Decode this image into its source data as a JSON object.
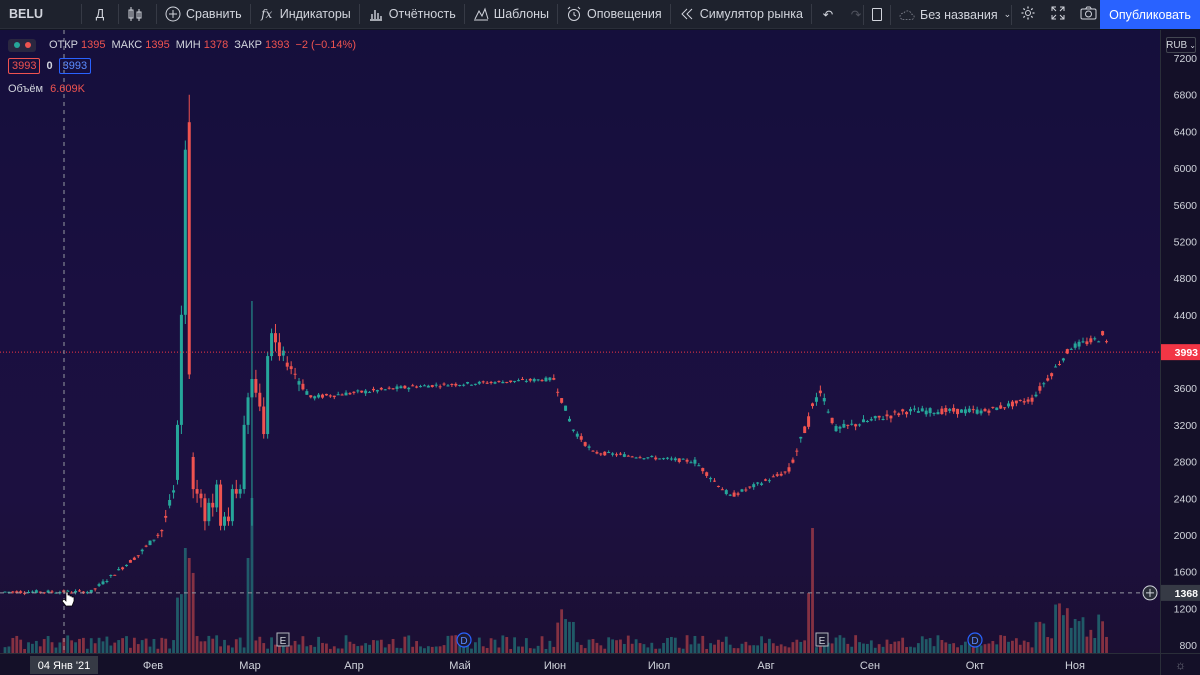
{
  "toolbar": {
    "symbol": "BELU",
    "interval": "Д",
    "compare": "Сравнить",
    "indicators": "Индикаторы",
    "financials": "Отчётность",
    "templates": "Шаблоны",
    "alerts": "Оповещения",
    "replay": "Симулятор рынка",
    "layout_name": "Без названия",
    "publish": "Опубликовать"
  },
  "legend": {
    "open_label": "ОТКР",
    "open": "1395",
    "high_label": "МАКС",
    "high": "1395",
    "low_label": "МИН",
    "low": "1378",
    "close_label": "ЗАКР",
    "close": "1393",
    "change": "−2 (−0.14%)",
    "bid": "3993",
    "spread": "0",
    "ask": "3993",
    "volume_label": "Объём",
    "volume": "6.609K"
  },
  "currency": "RUB",
  "price_ticks": [
    "7200",
    "6800",
    "6400",
    "6000",
    "5600",
    "5200",
    "4800",
    "4400",
    "3600",
    "3200",
    "2800",
    "2400",
    "2000",
    "1600",
    "1200",
    "800"
  ],
  "last_price_label": "3993",
  "crosshair_price_label": "1368",
  "time_ticks": [
    "Фев",
    "Мар",
    "Апр",
    "Май",
    "Июн",
    "Июл",
    "Авг",
    "Сен",
    "Окт",
    "Ноя"
  ],
  "crosshair_time_label": "04 Янв '21",
  "events": [
    "E",
    "D",
    "E",
    "D"
  ],
  "colors": {
    "up": "#26a69a",
    "down": "#ef5350",
    "last_price": "#f23645",
    "accent": "#2962ff"
  },
  "chart_data": {
    "type": "candlestick",
    "symbol": "BELU",
    "currency": "RUB",
    "ylim": [
      700,
      7400
    ],
    "period": "Jan 2021 – Nov 2021",
    "segments": [
      {
        "from": 0,
        "to": 22,
        "start": 1380,
        "end": 1380,
        "volatility": 35
      },
      {
        "from": 22,
        "to": 34,
        "start": 1380,
        "end": 1780,
        "volatility": 45
      },
      {
        "from": 34,
        "to": 40,
        "start": 1780,
        "end": 2050,
        "volatility": 60
      },
      {
        "from": 40,
        "to": 44,
        "start": 2050,
        "end": 2600,
        "volatility": 120
      }
    ],
    "explicit_candles": [
      {
        "i": 44,
        "o": 2600,
        "h": 3250,
        "l": 2550,
        "c": 3200
      },
      {
        "i": 45,
        "o": 3200,
        "h": 4500,
        "l": 3100,
        "c": 4400
      },
      {
        "i": 46,
        "o": 4400,
        "h": 6300,
        "l": 4300,
        "c": 6200
      },
      {
        "i": 47,
        "o": 6500,
        "h": 6800,
        "l": 3700,
        "c": 3750
      },
      {
        "i": 48,
        "o": 2850,
        "h": 2900,
        "l": 2400,
        "c": 2500
      },
      {
        "i": 49,
        "o": 2500,
        "h": 2600,
        "l": 2350,
        "c": 2450
      },
      {
        "i": 50,
        "o": 2450,
        "h": 2500,
        "l": 2300,
        "c": 2400
      },
      {
        "i": 51,
        "o": 2400,
        "h": 2450,
        "l": 2050,
        "c": 2150
      },
      {
        "i": 52,
        "o": 2150,
        "h": 2400,
        "l": 2100,
        "c": 2350
      },
      {
        "i": 53,
        "o": 2350,
        "h": 2450,
        "l": 2200,
        "c": 2300
      },
      {
        "i": 54,
        "o": 2300,
        "h": 2600,
        "l": 2250,
        "c": 2550
      },
      {
        "i": 55,
        "o": 2550,
        "h": 2600,
        "l": 2050,
        "c": 2100
      },
      {
        "i": 56,
        "o": 2100,
        "h": 2250,
        "l": 2050,
        "c": 2200
      },
      {
        "i": 57,
        "o": 2200,
        "h": 2300,
        "l": 2100,
        "c": 2150
      },
      {
        "i": 58,
        "o": 2150,
        "h": 2550,
        "l": 2100,
        "c": 2500
      },
      {
        "i": 59,
        "o": 2500,
        "h": 2600,
        "l": 2400,
        "c": 2450
      },
      {
        "i": 60,
        "o": 2450,
        "h": 2550,
        "l": 2400,
        "c": 2500
      },
      {
        "i": 61,
        "o": 2500,
        "h": 3300,
        "l": 2450,
        "c": 3200
      },
      {
        "i": 62,
        "o": 3200,
        "h": 3550,
        "l": 3100,
        "c": 3500
      },
      {
        "i": 63,
        "o": 3500,
        "h": 4550,
        "l": 2100,
        "c": 3700
      },
      {
        "i": 64,
        "o": 3700,
        "h": 3800,
        "l": 3500,
        "c": 3550
      },
      {
        "i": 65,
        "o": 3550,
        "h": 3650,
        "l": 3350,
        "c": 3400
      },
      {
        "i": 66,
        "o": 3400,
        "h": 3500,
        "l": 3050,
        "c": 3100
      },
      {
        "i": 67,
        "o": 3100,
        "h": 4000,
        "l": 3050,
        "c": 3950
      },
      {
        "i": 68,
        "o": 3950,
        "h": 4250,
        "l": 3900,
        "c": 4200
      },
      {
        "i": 69,
        "o": 4200,
        "h": 4300,
        "l": 4000,
        "c": 4100
      },
      {
        "i": 70,
        "o": 4100,
        "h": 4200,
        "l": 3900,
        "c": 3950
      }
    ],
    "segments_tail": [
      {
        "from": 71,
        "to": 78,
        "start": 3950,
        "end": 3500,
        "volatility": 120
      },
      {
        "from": 78,
        "to": 105,
        "start": 3500,
        "end": 3620,
        "volatility": 50
      },
      {
        "from": 105,
        "to": 140,
        "start": 3620,
        "end": 3700,
        "volatility": 40
      },
      {
        "from": 140,
        "to": 145,
        "start": 3700,
        "end": 3150,
        "volatility": 80
      },
      {
        "from": 145,
        "to": 150,
        "start": 3150,
        "end": 2900,
        "volatility": 60
      },
      {
        "from": 150,
        "to": 176,
        "start": 2900,
        "end": 2800,
        "volatility": 40
      },
      {
        "from": 176,
        "to": 185,
        "start": 2800,
        "end": 2420,
        "volatility": 60
      },
      {
        "from": 185,
        "to": 200,
        "start": 2420,
        "end": 2700,
        "volatility": 50
      },
      {
        "from": 200,
        "to": 205,
        "start": 2700,
        "end": 3250,
        "volatility": 90
      },
      {
        "from": 205,
        "to": 208,
        "start": 3250,
        "end": 3600,
        "volatility": 150
      },
      {
        "from": 208,
        "to": 212,
        "start": 3600,
        "end": 3150,
        "volatility": 120
      },
      {
        "from": 212,
        "to": 230,
        "start": 3150,
        "end": 3350,
        "volatility": 80
      },
      {
        "from": 230,
        "to": 250,
        "start": 3350,
        "end": 3350,
        "volatility": 70
      },
      {
        "from": 250,
        "to": 262,
        "start": 3350,
        "end": 3480,
        "volatility": 60
      },
      {
        "from": 262,
        "to": 272,
        "start": 3480,
        "end": 4050,
        "volatility": 70
      },
      {
        "from": 272,
        "to": 280,
        "start": 4050,
        "end": 4150,
        "volatility": 70
      },
      {
        "from": 280,
        "to": 282,
        "start": 4200,
        "end": 3993,
        "volatility": 60
      }
    ],
    "last_price": 3993,
    "crosshair_price": 1368,
    "crosshair_date": "04 Янв '21",
    "volume_last": "6.609K"
  }
}
